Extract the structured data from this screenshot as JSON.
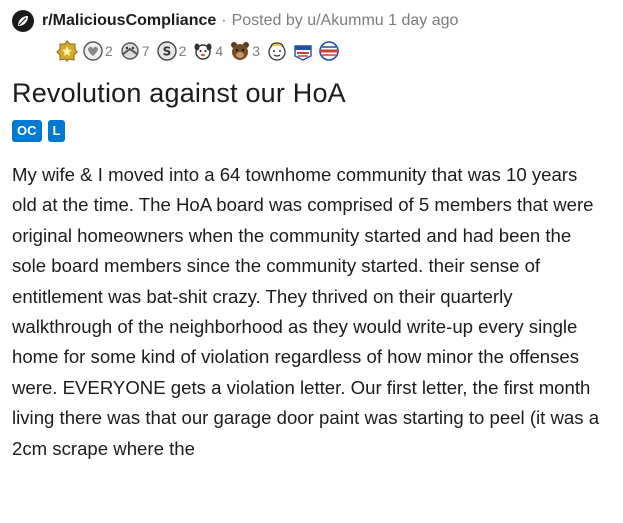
{
  "header": {
    "subreddit": "r/MaliciousCompliance",
    "separator": "·",
    "posted_by": "Posted by u/Akummu 1 day ago"
  },
  "awards": [
    {
      "icon": "gold-award-icon",
      "count": ""
    },
    {
      "icon": "wholesome-award-icon",
      "count": "2"
    },
    {
      "icon": "hugz-award-icon",
      "count": "7"
    },
    {
      "icon": "silver-s-award-icon",
      "count": "2"
    },
    {
      "icon": "dog-award-icon",
      "count": "4"
    },
    {
      "icon": "bear-award-icon",
      "count": "3"
    },
    {
      "icon": "face-award-icon",
      "count": ""
    },
    {
      "icon": "voted-award-icon",
      "count": ""
    },
    {
      "icon": "vote-award-icon",
      "count": ""
    }
  ],
  "title": "Revolution against our HoA",
  "flairs": [
    "OC",
    "L"
  ],
  "body": "My wife & I moved into a 64 townhome community that was 10 years old at the time. The HoA board was comprised of 5 members that were original homeowners when the community started and had been the sole board members since the community started. their sense of entitlement was bat-shit crazy. They thrived on their quarterly walkthrough of the neighborhood as they would write-up every single home for some kind of violation regardless of how minor the offenses were. EVERYONE gets a violation letter. Our first letter, the first month living there was that our garage door paint was starting to peel (it was a 2cm scrape where the",
  "colors": {
    "flair_bg": "#0079d3",
    "meta_gray": "#7c7c7c",
    "text": "#1c1c1c"
  }
}
